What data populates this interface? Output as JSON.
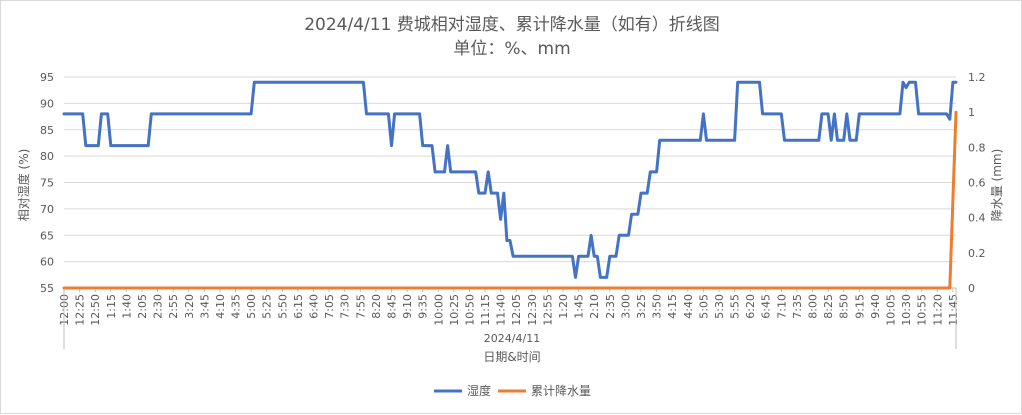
{
  "chart_data": {
    "type": "line",
    "title": "2024/4/11 费城相对湿度、累计降水量（如有）折线图",
    "subtitle": "单位：%、mm",
    "xlabel": "日期&时间",
    "x_group_label": "2024/4/11",
    "ylabel_left": "相对湿度 (%)",
    "ylabel_right": "降水量 (mm)",
    "ylim_left": [
      55,
      95
    ],
    "ylim_right": [
      0,
      1.2
    ],
    "yticks_left": [
      "55",
      "60",
      "65",
      "70",
      "75",
      "80",
      "85",
      "90",
      "95"
    ],
    "yticks_right": [
      "0",
      "0.2",
      "0.4",
      "0.6",
      "0.8",
      "1",
      "1.2"
    ],
    "xlim_minutes": [
      0,
      1430
    ],
    "x_tick_labels": [
      "12:00",
      "12:25",
      "12:50",
      "1:15",
      "1:40",
      "2:05",
      "2:30",
      "2:55",
      "3:20",
      "3:45",
      "4:10",
      "4:35",
      "5:00",
      "5:25",
      "5:50",
      "6:15",
      "6:40",
      "7:05",
      "7:30",
      "7:55",
      "8:20",
      "8:45",
      "9:10",
      "9:35",
      "10:00",
      "10:25",
      "10:50",
      "11:15",
      "11:40",
      "12:05",
      "12:30",
      "12:55",
      "1:20",
      "1:45",
      "2:10",
      "2:35",
      "3:00",
      "3:25",
      "3:50",
      "4:15",
      "4:40",
      "5:05",
      "5:30",
      "5:55",
      "6:20",
      "6:45",
      "7:10",
      "7:35",
      "8:00",
      "8:25",
      "8:50",
      "9:15",
      "9:40",
      "10:05",
      "10:30",
      "10:55",
      "11:20",
      "11:45"
    ],
    "grid": true,
    "legend_position": "bottom",
    "series": [
      {
        "name": "湿度",
        "color": "#4472c4",
        "axis": "left",
        "points": [
          [
            0,
            88
          ],
          [
            30,
            88
          ],
          [
            35,
            82
          ],
          [
            55,
            82
          ],
          [
            60,
            88
          ],
          [
            70,
            88
          ],
          [
            75,
            82
          ],
          [
            135,
            82
          ],
          [
            140,
            88
          ],
          [
            300,
            88
          ],
          [
            305,
            94
          ],
          [
            480,
            94
          ],
          [
            485,
            88
          ],
          [
            520,
            88
          ],
          [
            525,
            82
          ],
          [
            530,
            88
          ],
          [
            570,
            88
          ],
          [
            575,
            82
          ],
          [
            590,
            82
          ],
          [
            595,
            77
          ],
          [
            610,
            77
          ],
          [
            615,
            82
          ],
          [
            620,
            77
          ],
          [
            660,
            77
          ],
          [
            665,
            73
          ],
          [
            675,
            73
          ],
          [
            680,
            77
          ],
          [
            685,
            73
          ],
          [
            695,
            73
          ],
          [
            700,
            68
          ],
          [
            705,
            73
          ],
          [
            710,
            64
          ],
          [
            715,
            64
          ],
          [
            720,
            61
          ],
          [
            815,
            61
          ],
          [
            820,
            57
          ],
          [
            825,
            61
          ],
          [
            840,
            61
          ],
          [
            845,
            65
          ],
          [
            850,
            61
          ],
          [
            855,
            61
          ],
          [
            860,
            57
          ],
          [
            870,
            57
          ],
          [
            875,
            61
          ],
          [
            885,
            61
          ],
          [
            890,
            65
          ],
          [
            905,
            65
          ],
          [
            910,
            69
          ],
          [
            920,
            69
          ],
          [
            925,
            73
          ],
          [
            935,
            73
          ],
          [
            940,
            77
          ],
          [
            950,
            77
          ],
          [
            955,
            83
          ],
          [
            1020,
            83
          ],
          [
            1025,
            88
          ],
          [
            1030,
            83
          ],
          [
            1075,
            83
          ],
          [
            1080,
            94
          ],
          [
            1115,
            94
          ],
          [
            1120,
            88
          ],
          [
            1150,
            88
          ],
          [
            1155,
            83
          ],
          [
            1210,
            83
          ],
          [
            1215,
            88
          ],
          [
            1225,
            88
          ],
          [
            1230,
            83
          ],
          [
            1235,
            88
          ],
          [
            1240,
            83
          ],
          [
            1250,
            83
          ],
          [
            1255,
            88
          ],
          [
            1260,
            83
          ],
          [
            1270,
            83
          ],
          [
            1275,
            88
          ],
          [
            1340,
            88
          ],
          [
            1345,
            94
          ],
          [
            1350,
            93
          ],
          [
            1355,
            94
          ],
          [
            1365,
            94
          ],
          [
            1370,
            88
          ],
          [
            1415,
            88
          ],
          [
            1420,
            87
          ],
          [
            1425,
            94
          ],
          [
            1430,
            94
          ]
        ]
      },
      {
        "name": "累计降水量",
        "color": "#ed7d31",
        "axis": "right",
        "points": [
          [
            0,
            0
          ],
          [
            1420,
            0
          ],
          [
            1430,
            1.0
          ]
        ]
      }
    ]
  }
}
